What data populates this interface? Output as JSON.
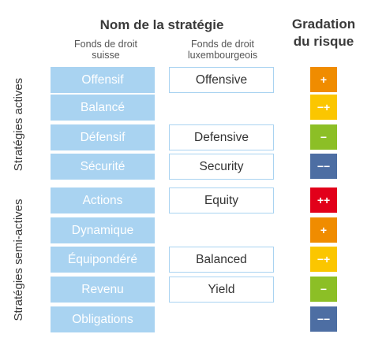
{
  "header": {
    "title": "Nom de la stratégie",
    "risk_line1": "Gradation",
    "risk_line2": "du risque",
    "swiss_line1": "Fonds de droit",
    "swiss_line2": "suisse",
    "lux_line1": "Fonds de droit",
    "lux_line2": "luxembourgeois"
  },
  "groups": {
    "active": "Stratégies actives",
    "semi_active": "Stratégies semi-actives"
  },
  "rows": [
    {
      "swiss": "Offensif",
      "lux": "Offensive",
      "risk": "+",
      "color": "#f08c00"
    },
    {
      "swiss": "Balancé",
      "lux": "",
      "risk": "−+",
      "color": "#fbc600"
    },
    {
      "swiss": "Défensif",
      "lux": "Defensive",
      "risk": "−",
      "color": "#8cbf26"
    },
    {
      "swiss": "Sécurité",
      "lux": "Security",
      "risk": "−−",
      "color": "#4d6ea3"
    },
    {
      "swiss": "Actions",
      "lux": "Equity",
      "risk": "++",
      "color": "#e2001a"
    },
    {
      "swiss": "Dynamique",
      "lux": "",
      "risk": "+",
      "color": "#f08c00"
    },
    {
      "swiss": "Équipondéré",
      "lux": "Balanced",
      "risk": "−+",
      "color": "#fbc600"
    },
    {
      "swiss": "Revenu",
      "lux": "Yield",
      "risk": "−",
      "color": "#8cbf26"
    },
    {
      "swiss": "Obligations",
      "lux": "",
      "risk": "−−",
      "color": "#4d6ea3"
    }
  ]
}
